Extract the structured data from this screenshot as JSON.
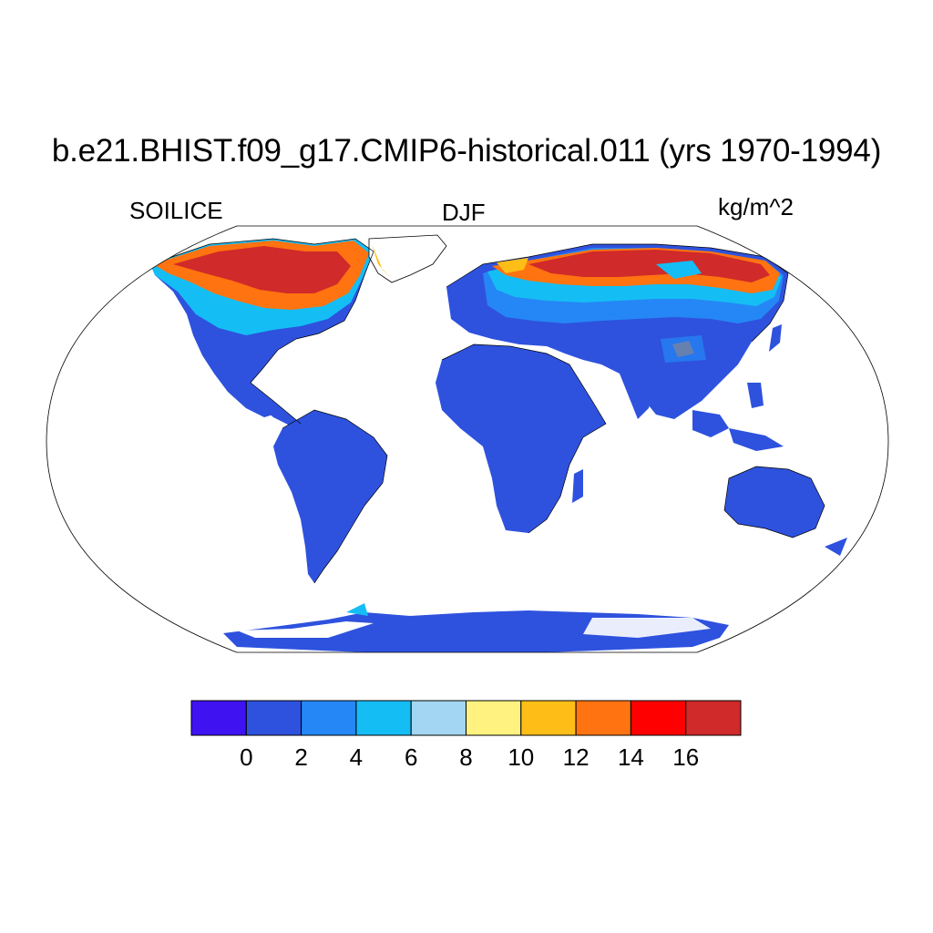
{
  "title": "b.e21.BHIST.f09_g17.CMIP6-historical.011 (yrs 1970-1994)",
  "variable": "SOILICE",
  "season": "DJF",
  "units": "kg/m^2",
  "projection": "Robinson",
  "colorbar": {
    "colors": [
      "#3F12F2",
      "#2E52DE",
      "#2587F5",
      "#15BDF5",
      "#A3D6F2",
      "#FFF280",
      "#FFBE17",
      "#FF7310",
      "#FF0000",
      "#D02A2A"
    ],
    "tick_labels": [
      "0",
      "2",
      "4",
      "6",
      "8",
      "10",
      "12",
      "14",
      "16"
    ]
  },
  "regions": [
    {
      "name": "North America",
      "level_band": "0-2 south, 12-16+ north"
    },
    {
      "name": "South America",
      "level_band": "0-2"
    },
    {
      "name": "Africa",
      "level_band": "0-2"
    },
    {
      "name": "Eurasia",
      "level_band": "0-2 south, 4-8 mid, 14-16+ north"
    },
    {
      "name": "Australia",
      "level_band": "0-2"
    },
    {
      "name": "Antarctica",
      "level_band": "0-2 coastal"
    }
  ]
}
